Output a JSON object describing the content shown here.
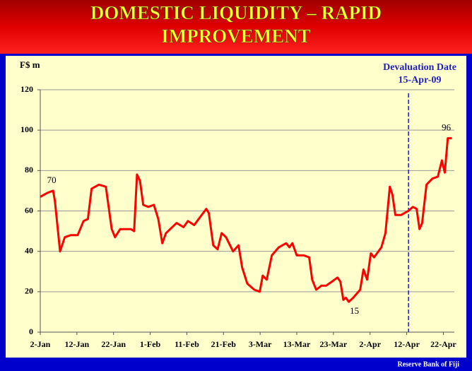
{
  "chart_data": {
    "type": "line",
    "title": [
      "DOMESTIC LIQUIDITY – RAPID",
      "IMPROVEMENT"
    ],
    "ylabel": "F$ m",
    "footer": "Reserve Bank of Fiji",
    "xlim": [
      0,
      113
    ],
    "xticks": [
      {
        "value": 0,
        "label": "2-Jan"
      },
      {
        "value": 10,
        "label": "12-Jan"
      },
      {
        "value": 20,
        "label": "22-Jan"
      },
      {
        "value": 30,
        "label": "1-Feb"
      },
      {
        "value": 40,
        "label": "11-Feb"
      },
      {
        "value": 50,
        "label": "21-Feb"
      },
      {
        "value": 60,
        "label": "3-Mar"
      },
      {
        "value": 70,
        "label": "13-Mar"
      },
      {
        "value": 80,
        "label": "23-Mar"
      },
      {
        "value": 90,
        "label": "2-Apr"
      },
      {
        "value": 100,
        "label": "12-Apr"
      },
      {
        "value": 110,
        "label": "22-Apr"
      }
    ],
    "ylim": [
      0,
      120
    ],
    "yticks": [
      0,
      20,
      40,
      60,
      80,
      100,
      120
    ],
    "grid": true,
    "devaluation": {
      "x": 100.5,
      "text": "Devaluation Date",
      "date": "15-Apr-09",
      "color": "#1f1fbf"
    },
    "series": [
      {
        "name": "Domestic liquidity",
        "color": "#ff0000",
        "x": [
          0,
          2,
          3.5,
          4,
          5.4,
          6.7,
          8.3,
          10.2,
          11.8,
          13,
          14,
          16,
          17.9,
          19.5,
          20.4,
          21.8,
          24.7,
          25.6,
          26.4,
          27.2,
          28.1,
          29.5,
          31,
          32.2,
          33.3,
          34.3,
          37.2,
          39.1,
          40.3,
          42,
          45.3,
          46,
          47.2,
          48.4,
          49.5,
          50.7,
          52.6,
          54.1,
          55.1,
          56.5,
          58.4,
          59.9,
          60.7,
          61.8,
          63.2,
          65.1,
          67.1,
          68,
          68.8,
          70,
          71.9,
          73.4,
          74.2,
          75.3,
          76.7,
          78,
          79.6,
          81.1,
          81.9,
          82.7,
          83.4,
          84.2,
          85.4,
          87.3,
          88.2,
          89.2,
          90.2,
          91.1,
          93.1,
          94.2,
          95.4,
          96.1,
          96.9,
          98.5,
          100.4,
          101.7,
          102.7,
          103.5,
          104.2,
          105.4,
          107,
          108.5,
          109.6,
          110.4,
          111.2,
          112.3
        ],
        "values": [
          67,
          69,
          70,
          65,
          40,
          47,
          48,
          48,
          55,
          56,
          71,
          73,
          72,
          51,
          47,
          51,
          51,
          50,
          78,
          75,
          63,
          62,
          63,
          56,
          44,
          49,
          54,
          52,
          55,
          53,
          61,
          59,
          43,
          41,
          49,
          47,
          40,
          43,
          32,
          24,
          21,
          20,
          28,
          26,
          38,
          42,
          44,
          42,
          44,
          38,
          38,
          37,
          26,
          21,
          23,
          23,
          25,
          27,
          25,
          16,
          17,
          15,
          17,
          21,
          31,
          26,
          39,
          37,
          42,
          49,
          72,
          68,
          58,
          58,
          60,
          62,
          61,
          51,
          54,
          73,
          76,
          77,
          85,
          79,
          96,
          96
        ],
        "value_labels": [
          null,
          null,
          "70",
          null,
          null,
          null,
          null,
          null,
          null,
          null,
          null,
          null,
          null,
          null,
          null,
          null,
          null,
          null,
          null,
          null,
          null,
          null,
          null,
          null,
          null,
          null,
          null,
          null,
          null,
          null,
          null,
          null,
          null,
          null,
          null,
          null,
          null,
          null,
          null,
          null,
          null,
          null,
          null,
          null,
          null,
          null,
          null,
          null,
          null,
          null,
          null,
          null,
          null,
          null,
          null,
          null,
          null,
          null,
          null,
          null,
          null,
          "15",
          null,
          null,
          null,
          null,
          null,
          null,
          null,
          null,
          null,
          null,
          null,
          null,
          null,
          null,
          null,
          null,
          null,
          null,
          null,
          null,
          null,
          null,
          "96",
          null
        ]
      }
    ]
  }
}
